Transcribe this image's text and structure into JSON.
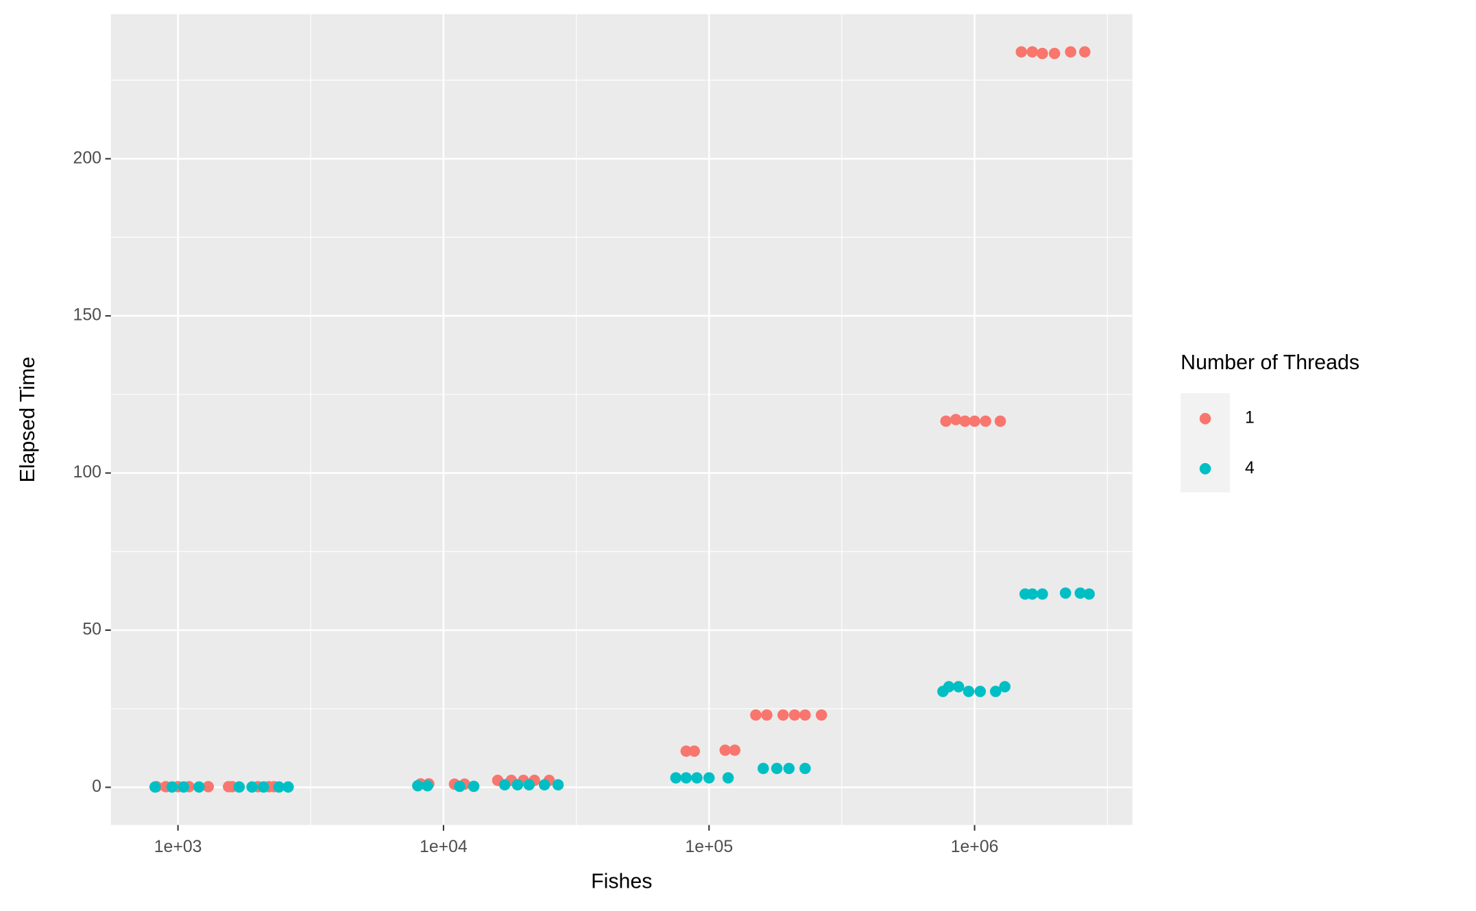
{
  "chart_data": {
    "type": "scatter",
    "x_label": "Fishes",
    "y_label": "Elapsed Time",
    "log_x": true,
    "grid": true,
    "legend_title": "Number of Threads",
    "legend_position": "right",
    "xlim": [
      559,
      3930000
    ],
    "ylim": [
      -12,
      246
    ],
    "xticks": [
      {
        "value": 1000,
        "label": "1e+03"
      },
      {
        "value": 10000,
        "label": "1e+04"
      },
      {
        "value": 100000,
        "label": "1e+05"
      },
      {
        "value": 1000000,
        "label": "1e+06"
      }
    ],
    "yticks": [
      0,
      50,
      100,
      150,
      200
    ],
    "series": [
      {
        "name": "1",
        "color": "#F8766D",
        "x": [
          830,
          900,
          1000,
          1100,
          1300,
          1550,
          1600,
          2000,
          2200,
          2300,
          8200,
          8800,
          11000,
          12000,
          16000,
          18000,
          20000,
          22000,
          25000,
          82000,
          88000,
          115000,
          125000,
          150000,
          165000,
          190000,
          210000,
          230000,
          265000,
          780000,
          850000,
          920000,
          1000000,
          1100000,
          1250000,
          1500000,
          1650000,
          1800000,
          2000000,
          2300000,
          2600000
        ],
        "values": [
          0.2,
          0.2,
          0.2,
          0.2,
          0.2,
          0.2,
          0.2,
          0.2,
          0.2,
          0.2,
          1.1,
          1.1,
          1.0,
          1.0,
          2.2,
          2.2,
          2.2,
          2.2,
          2.2,
          11.5,
          11.5,
          11.8,
          11.8,
          23,
          23,
          23,
          23,
          23,
          23,
          116.5,
          117,
          116.5,
          116.5,
          116.5,
          116.5,
          234,
          234,
          233.5,
          233.5,
          234,
          234
        ]
      },
      {
        "name": "4",
        "color": "#00BFC4",
        "x": [
          820,
          950,
          1050,
          1200,
          1700,
          1900,
          2100,
          2400,
          2600,
          8000,
          8700,
          11500,
          13000,
          17000,
          19000,
          21000,
          24000,
          27000,
          75000,
          82000,
          90000,
          100000,
          118000,
          160000,
          180000,
          200000,
          230000,
          760000,
          800000,
          870000,
          950000,
          1050000,
          1200000,
          1300000,
          1550000,
          1650000,
          1800000,
          2200000,
          2500000,
          2700000
        ],
        "values": [
          0.1,
          0.1,
          0.1,
          0.1,
          0.1,
          0.1,
          0.1,
          0.1,
          0.1,
          0.5,
          0.5,
          0.3,
          0.3,
          0.8,
          0.8,
          0.8,
          0.8,
          0.8,
          3,
          3,
          3,
          3,
          3,
          6,
          6,
          6,
          6,
          30.5,
          32,
          32,
          30.5,
          30.5,
          30.5,
          32,
          61.5,
          61.5,
          61.5,
          61.8,
          61.8,
          61.5
        ]
      }
    ]
  }
}
